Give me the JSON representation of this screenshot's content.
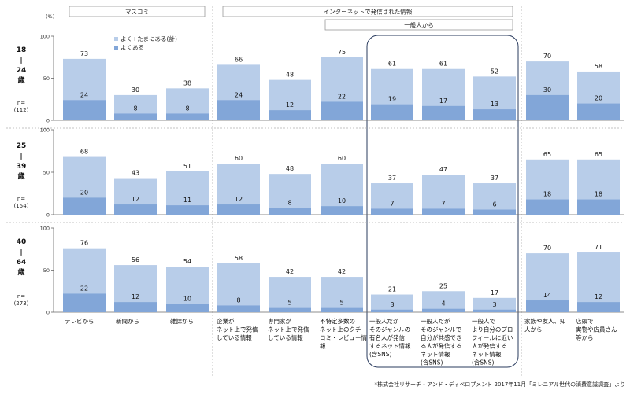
{
  "header_groups": {
    "mass": "マスコミ",
    "internet": "インターネットで発信された情報",
    "general": "一般人から"
  },
  "axis_unit": "(%)",
  "legend": {
    "total": "よく+たまにある(計)",
    "often": "よくある"
  },
  "colors": {
    "total": "#b8cde9",
    "often": "#82a6d8",
    "axis": "#666666"
  },
  "footer": "*株式会社リサーチ・アンド・ディベロプメント 2017年11月「ミレニアル世代の消費意識調査」より",
  "chart_data": {
    "type": "bar",
    "stacking": "overlap",
    "ylim": [
      0,
      100
    ],
    "yticks": [
      0,
      50,
      100
    ],
    "grid": false,
    "legend_position": "top-left",
    "categories": [
      "テレビから",
      "新聞から",
      "雑誌から",
      "企業が\nネット上で発信\nしている情報",
      "専門家が\nネット上で発信\nしている情報",
      "不特定多数の\nネット上のクチ\nコミ・レビュー情\n報",
      "一般人だが\nそのジャンルの\n有名人が発信\nするネット情報\n(含SNS)",
      "一般人だが\nそのジャンルで\n自分が共感でき\nる人が発信する\nネット情報\n(含SNS)",
      "一般人で\nより自分のプロ\nフィールに近い\n人が発信する\nネット情報\n(含SNS)",
      "家族や友人、知\n人から",
      "店頭で\n実物や店員さん\n等から"
    ],
    "panels": [
      {
        "age_chars": [
          "18",
          "|",
          "24",
          "歳"
        ],
        "n_label": "n=",
        "n": "(112)",
        "series": [
          {
            "name": "よく+たまにある(計)",
            "values": [
              73,
              30,
              38,
              66,
              48,
              75,
              61,
              61,
              52,
              70,
              58
            ]
          },
          {
            "name": "よくある",
            "values": [
              24,
              8,
              8,
              24,
              12,
              22,
              19,
              17,
              13,
              30,
              20
            ]
          }
        ]
      },
      {
        "age_chars": [
          "25",
          "|",
          "39",
          "歳"
        ],
        "n_label": "n=",
        "n": "(154)",
        "series": [
          {
            "name": "よく+たまにある(計)",
            "values": [
              68,
              43,
              51,
              60,
              48,
              60,
              37,
              47,
              37,
              65,
              65
            ]
          },
          {
            "name": "よくある",
            "values": [
              20,
              12,
              11,
              12,
              8,
              10,
              7,
              7,
              6,
              18,
              18
            ]
          }
        ]
      },
      {
        "age_chars": [
          "40",
          "|",
          "64",
          "歳"
        ],
        "n_label": "n=",
        "n": "(273)",
        "series": [
          {
            "name": "よく+たまにある(計)",
            "values": [
              76,
              56,
              54,
              58,
              42,
              42,
              21,
              25,
              17,
              70,
              71
            ]
          },
          {
            "name": "よくある",
            "values": [
              22,
              12,
              10,
              8,
              5,
              5,
              3,
              4,
              3,
              14,
              12
            ]
          }
        ]
      }
    ]
  }
}
